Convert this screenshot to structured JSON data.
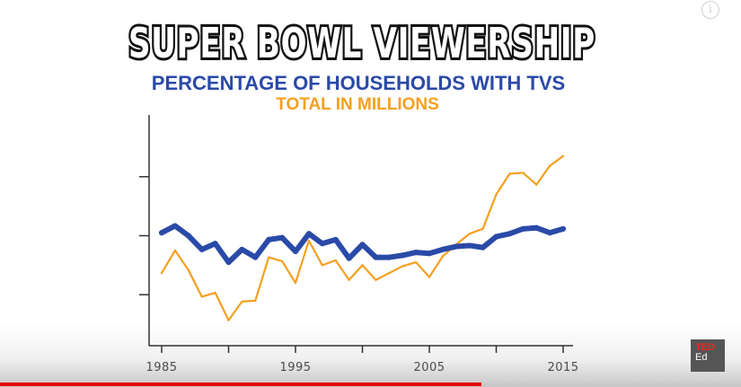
{
  "chart_data": {
    "type": "line",
    "title": "SUPER BOWL VIEWERSHIP",
    "x": [
      1985,
      1986,
      1987,
      1988,
      1989,
      1990,
      1991,
      1992,
      1993,
      1994,
      1995,
      1996,
      1997,
      1998,
      1999,
      2000,
      2001,
      2002,
      2003,
      2004,
      2005,
      2006,
      2007,
      2008,
      2009,
      2010,
      2011,
      2012,
      2013,
      2014,
      2015
    ],
    "xticks": [
      1985,
      1995,
      2005,
      2015
    ],
    "xlim": [
      1985,
      2015
    ],
    "ylim": [
      0,
      100
    ],
    "yticks": [
      20,
      50,
      80
    ],
    "yticklabels_shown": false,
    "grid": false,
    "series": [
      {
        "name": "PERCENTAGE OF HOUSEHOLDS WITH TVS",
        "color": "#2a4aa8",
        "values": [
          51.5,
          55,
          50,
          43,
          46,
          36.5,
          43,
          39,
          48,
          49,
          42,
          51,
          46,
          48,
          38.5,
          45.5,
          39,
          39,
          40,
          41.5,
          41,
          43,
          44.5,
          45,
          44,
          49.5,
          51,
          53.5,
          54,
          51.5,
          53.5
        ]
      },
      {
        "name": "TOTAL IN MILLIONS",
        "color": "#f4a020",
        "values": [
          31,
          42.5,
          32.5,
          19,
          21,
          7,
          16.5,
          17,
          39,
          37,
          26,
          47.5,
          35,
          37.5,
          27.5,
          35,
          27.5,
          31,
          34.5,
          36.5,
          29,
          39.5,
          45.5,
          51,
          53.5,
          71,
          81.5,
          82,
          76,
          85.5,
          90.5
        ]
      }
    ]
  },
  "ui": {
    "info_icon_glyph": "i",
    "ted_line1": "TED",
    "ted_line2": "Ed",
    "progress": 0.65,
    "progress_color": "#e60000"
  }
}
